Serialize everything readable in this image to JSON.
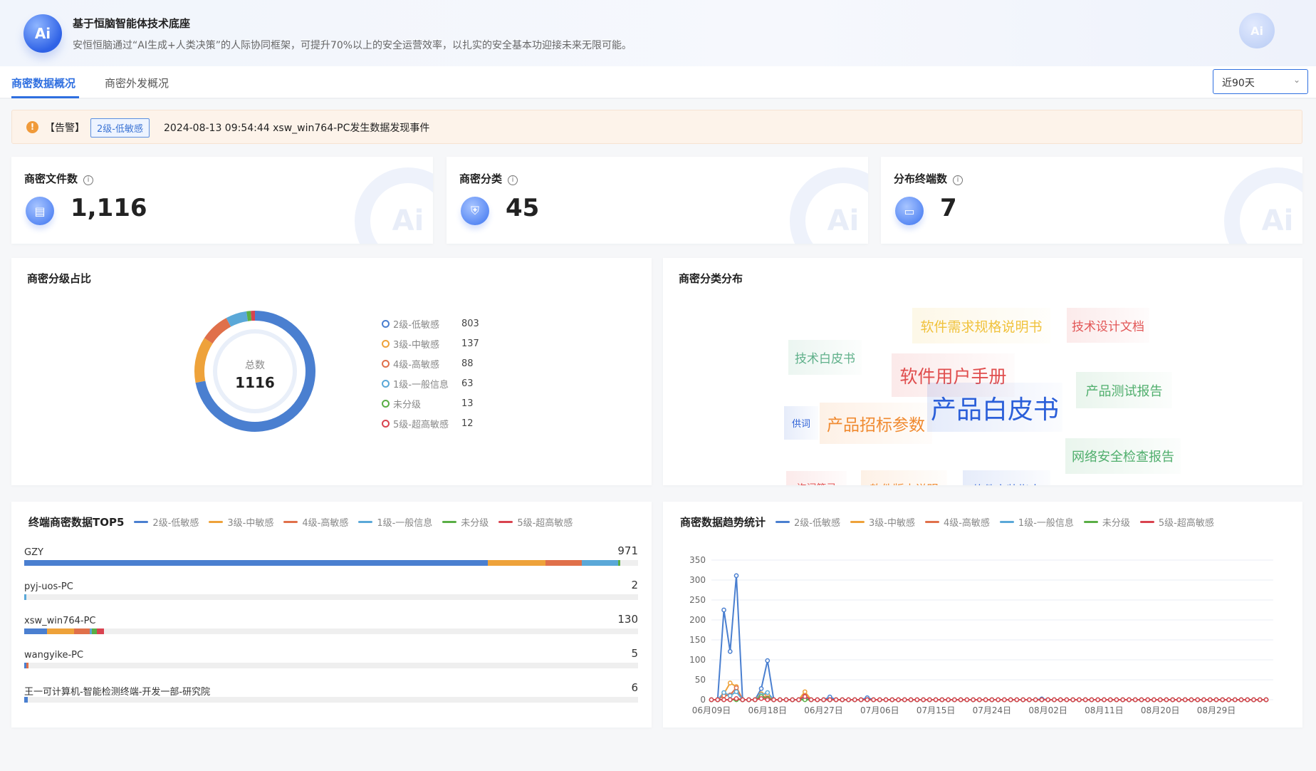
{
  "header": {
    "logo_text": "Ai",
    "title": "基于恒脑智能体技术底座",
    "subtitle": "安恒恒脑通过“AI生成+人类决策”的人际协同框架，可提升70%以上的安全运营效率，以扎实的安全基本功迎接未来无限可能。"
  },
  "tabs": [
    {
      "label": "商密数据概况",
      "active": true
    },
    {
      "label": "商密外发概况",
      "active": false
    }
  ],
  "range_select": {
    "value": "近90天"
  },
  "alert": {
    "tag": "【告警】",
    "level": "2级-低敏感",
    "message": "2024-08-13 09:54:44 xsw_win764-PC发生数据发现事件"
  },
  "stats": [
    {
      "title": "商密文件数",
      "value": "1,116",
      "icon": "file-icon"
    },
    {
      "title": "商密分类",
      "value": "45",
      "icon": "shield-icon"
    },
    {
      "title": "分布终端数",
      "value": "7",
      "icon": "monitor-icon"
    }
  ],
  "levels": [
    {
      "name": "2级-低敏感",
      "color": "#4a7fd0"
    },
    {
      "name": "3级-中敏感",
      "color": "#eea23a"
    },
    {
      "name": "4级-高敏感",
      "color": "#e0704a"
    },
    {
      "name": "1级-一般信息",
      "color": "#5aa8d8"
    },
    {
      "name": "未分级",
      "color": "#5aae45"
    },
    {
      "name": "5级-超高敏感",
      "color": "#d9434f"
    }
  ],
  "chart_data": [
    {
      "type": "pie",
      "title": "商密分级占比",
      "center_label": "总数",
      "total": "1116",
      "categories": [
        "2级-低敏感",
        "3级-中敏感",
        "4级-高敏感",
        "1级-一般信息",
        "未分级",
        "5级-超高敏感"
      ],
      "values": [
        803,
        137,
        88,
        63,
        13,
        12
      ],
      "legend": "right"
    },
    {
      "type": "bar",
      "title": "终端商密数据TOP5",
      "orientation": "horizontal",
      "stacked": true,
      "categories": [
        "GZY",
        "pyj-uos-PC",
        "xsw_win764-PC",
        "wangyike-PC",
        "王一可计算机-智能检测终端-开发一部-研究院"
      ],
      "totals": [
        971,
        2,
        130,
        5,
        6
      ],
      "series": [
        {
          "name": "2级-低敏感",
          "values": [
            755,
            0,
            37,
            2,
            6
          ]
        },
        {
          "name": "3级-中敏感",
          "values": [
            94,
            0,
            44,
            0,
            0
          ]
        },
        {
          "name": "4级-高敏感",
          "values": [
            59,
            0,
            26,
            3,
            0
          ]
        },
        {
          "name": "1级-一般信息",
          "values": [
            60,
            2,
            3,
            0,
            0
          ]
        },
        {
          "name": "未分级",
          "values": [
            3,
            0,
            8,
            0,
            0
          ]
        },
        {
          "name": "5级-超高敏感",
          "values": [
            0,
            0,
            12,
            0,
            0
          ]
        }
      ],
      "xlim": [
        0,
        1000
      ],
      "legend": "top"
    },
    {
      "type": "line",
      "title": "商密数据趋势统计",
      "x_range": [
        "06月09日",
        "09月06日"
      ],
      "x_tick_labels": [
        "06月09日",
        "06月18日",
        "06月27日",
        "07月06日",
        "07月15日",
        "07月24日",
        "08月02日",
        "08月11日",
        "08月20日",
        "08月29日"
      ],
      "ylim": [
        0,
        350
      ],
      "y_ticks": [
        0,
        50,
        100,
        150,
        200,
        250,
        300,
        350
      ],
      "grid": true,
      "legend": "top",
      "series": [
        {
          "name": "2级-低敏感",
          "values": [
            0,
            0,
            225,
            121,
            311,
            0,
            0,
            0,
            28,
            98,
            0,
            0,
            0,
            0,
            0,
            6,
            0,
            0,
            0,
            7,
            0,
            0,
            0,
            0,
            0,
            5,
            0,
            0,
            0,
            0,
            0,
            0,
            0,
            0,
            0,
            0,
            0,
            0,
            0,
            0,
            0,
            0,
            0,
            0,
            0,
            0,
            0,
            0,
            0,
            0,
            0,
            0,
            0,
            2,
            0,
            0,
            0,
            0,
            0,
            0,
            0,
            0,
            0,
            0,
            0,
            0,
            0,
            0,
            0,
            0,
            0,
            0,
            0,
            0,
            0,
            0,
            0,
            0,
            0,
            0,
            0,
            0,
            0,
            0,
            0,
            0,
            0,
            0,
            0,
            0
          ]
        },
        {
          "name": "3级-中敏感",
          "values": [
            0,
            0,
            15,
            42,
            33,
            0,
            0,
            0,
            15,
            12,
            0,
            0,
            0,
            0,
            0,
            20,
            0,
            0,
            0,
            0,
            0,
            0,
            0,
            0,
            0,
            0,
            0,
            0,
            0,
            0,
            0,
            0,
            0,
            0,
            0,
            0,
            0,
            0,
            0,
            0,
            0,
            0,
            0,
            0,
            0,
            0,
            0,
            0,
            0,
            0,
            0,
            0,
            0,
            0,
            0,
            0,
            0,
            0,
            0,
            0,
            0,
            0,
            0,
            0,
            0,
            0,
            0,
            0,
            0,
            0,
            0,
            0,
            0,
            0,
            0,
            0,
            0,
            0,
            0,
            0,
            0,
            0,
            0,
            0,
            0,
            0,
            0,
            0,
            0,
            0
          ]
        },
        {
          "name": "4级-高敏感",
          "values": [
            0,
            0,
            10,
            12,
            30,
            0,
            0,
            0,
            10,
            5,
            0,
            0,
            0,
            0,
            0,
            10,
            0,
            0,
            0,
            0,
            0,
            0,
            0,
            0,
            0,
            0,
            0,
            0,
            0,
            0,
            0,
            0,
            0,
            0,
            0,
            0,
            0,
            0,
            0,
            0,
            0,
            0,
            0,
            0,
            0,
            0,
            0,
            0,
            0,
            0,
            0,
            0,
            0,
            0,
            0,
            0,
            0,
            0,
            0,
            0,
            0,
            0,
            0,
            0,
            0,
            0,
            0,
            0,
            0,
            0,
            0,
            0,
            0,
            0,
            0,
            0,
            0,
            0,
            0,
            0,
            0,
            0,
            0,
            0,
            0,
            0,
            0,
            0,
            0,
            0
          ]
        },
        {
          "name": "1级-一般信息",
          "values": [
            0,
            0,
            18,
            10,
            20,
            0,
            0,
            0,
            12,
            18,
            0,
            0,
            0,
            0,
            0,
            5,
            0,
            0,
            0,
            0,
            0,
            0,
            0,
            0,
            0,
            0,
            0,
            0,
            0,
            0,
            0,
            0,
            0,
            0,
            0,
            0,
            0,
            0,
            0,
            0,
            0,
            0,
            0,
            0,
            0,
            0,
            0,
            0,
            0,
            0,
            0,
            0,
            0,
            0,
            0,
            0,
            0,
            0,
            0,
            0,
            0,
            0,
            0,
            0,
            0,
            0,
            0,
            0,
            0,
            0,
            0,
            0,
            0,
            0,
            0,
            0,
            0,
            0,
            0,
            0,
            0,
            0,
            0,
            0,
            0,
            0,
            0,
            0,
            0,
            0
          ]
        },
        {
          "name": "未分级",
          "values": [
            0,
            0,
            0,
            0,
            0,
            0,
            0,
            0,
            8,
            3,
            0,
            0,
            0,
            0,
            0,
            0,
            0,
            0,
            0,
            0,
            0,
            0,
            0,
            0,
            0,
            0,
            0,
            0,
            0,
            0,
            0,
            0,
            0,
            0,
            0,
            0,
            0,
            0,
            0,
            0,
            0,
            0,
            0,
            0,
            0,
            0,
            0,
            0,
            0,
            0,
            0,
            0,
            0,
            0,
            0,
            0,
            0,
            0,
            0,
            0,
            0,
            0,
            0,
            0,
            0,
            0,
            0,
            0,
            0,
            0,
            0,
            0,
            0,
            0,
            0,
            0,
            0,
            0,
            0,
            0,
            0,
            0,
            0,
            0,
            0,
            0,
            0,
            0,
            0,
            0
          ]
        },
        {
          "name": "5级-超高敏感",
          "values": [
            0,
            0,
            0,
            0,
            3,
            0,
            0,
            0,
            3,
            0,
            0,
            0,
            0,
            0,
            0,
            8,
            0,
            0,
            0,
            0,
            0,
            0,
            0,
            0,
            0,
            0,
            0,
            0,
            0,
            0,
            0,
            0,
            0,
            0,
            0,
            0,
            0,
            0,
            0,
            0,
            0,
            0,
            0,
            0,
            0,
            0,
            0,
            0,
            0,
            0,
            0,
            0,
            0,
            0,
            0,
            0,
            0,
            0,
            0,
            0,
            0,
            0,
            0,
            0,
            0,
            0,
            0,
            0,
            0,
            0,
            0,
            0,
            0,
            0,
            0,
            0,
            0,
            0,
            0,
            0,
            0,
            0,
            0,
            0,
            0,
            0,
            0,
            0,
            0,
            0
          ]
        }
      ]
    }
  ],
  "wordcloud": {
    "title": "商密分类分布",
    "words": [
      {
        "text": "软件需求规格说明书",
        "color": "#f0c23c"
      },
      {
        "text": "技术设计文档",
        "color": "#e25656"
      },
      {
        "text": "技术白皮书",
        "color": "#5fb08a"
      },
      {
        "text": "软件用户手册",
        "color": "#e04e4e"
      },
      {
        "text": "产品白皮书",
        "color": "#2b5fd9"
      },
      {
        "text": "产品测试报告",
        "color": "#4fae6c"
      },
      {
        "text": "供词",
        "color": "#2f62d6"
      },
      {
        "text": "产品招标参数",
        "color": "#f08a30"
      },
      {
        "text": "网络安全检查报告",
        "color": "#4fae6c"
      },
      {
        "text": "询问笔录",
        "color": "#e25656"
      },
      {
        "text": "软件版本说明",
        "color": "#f08a30"
      },
      {
        "text": "软件安装指南",
        "color": "#2f62d6"
      }
    ]
  }
}
